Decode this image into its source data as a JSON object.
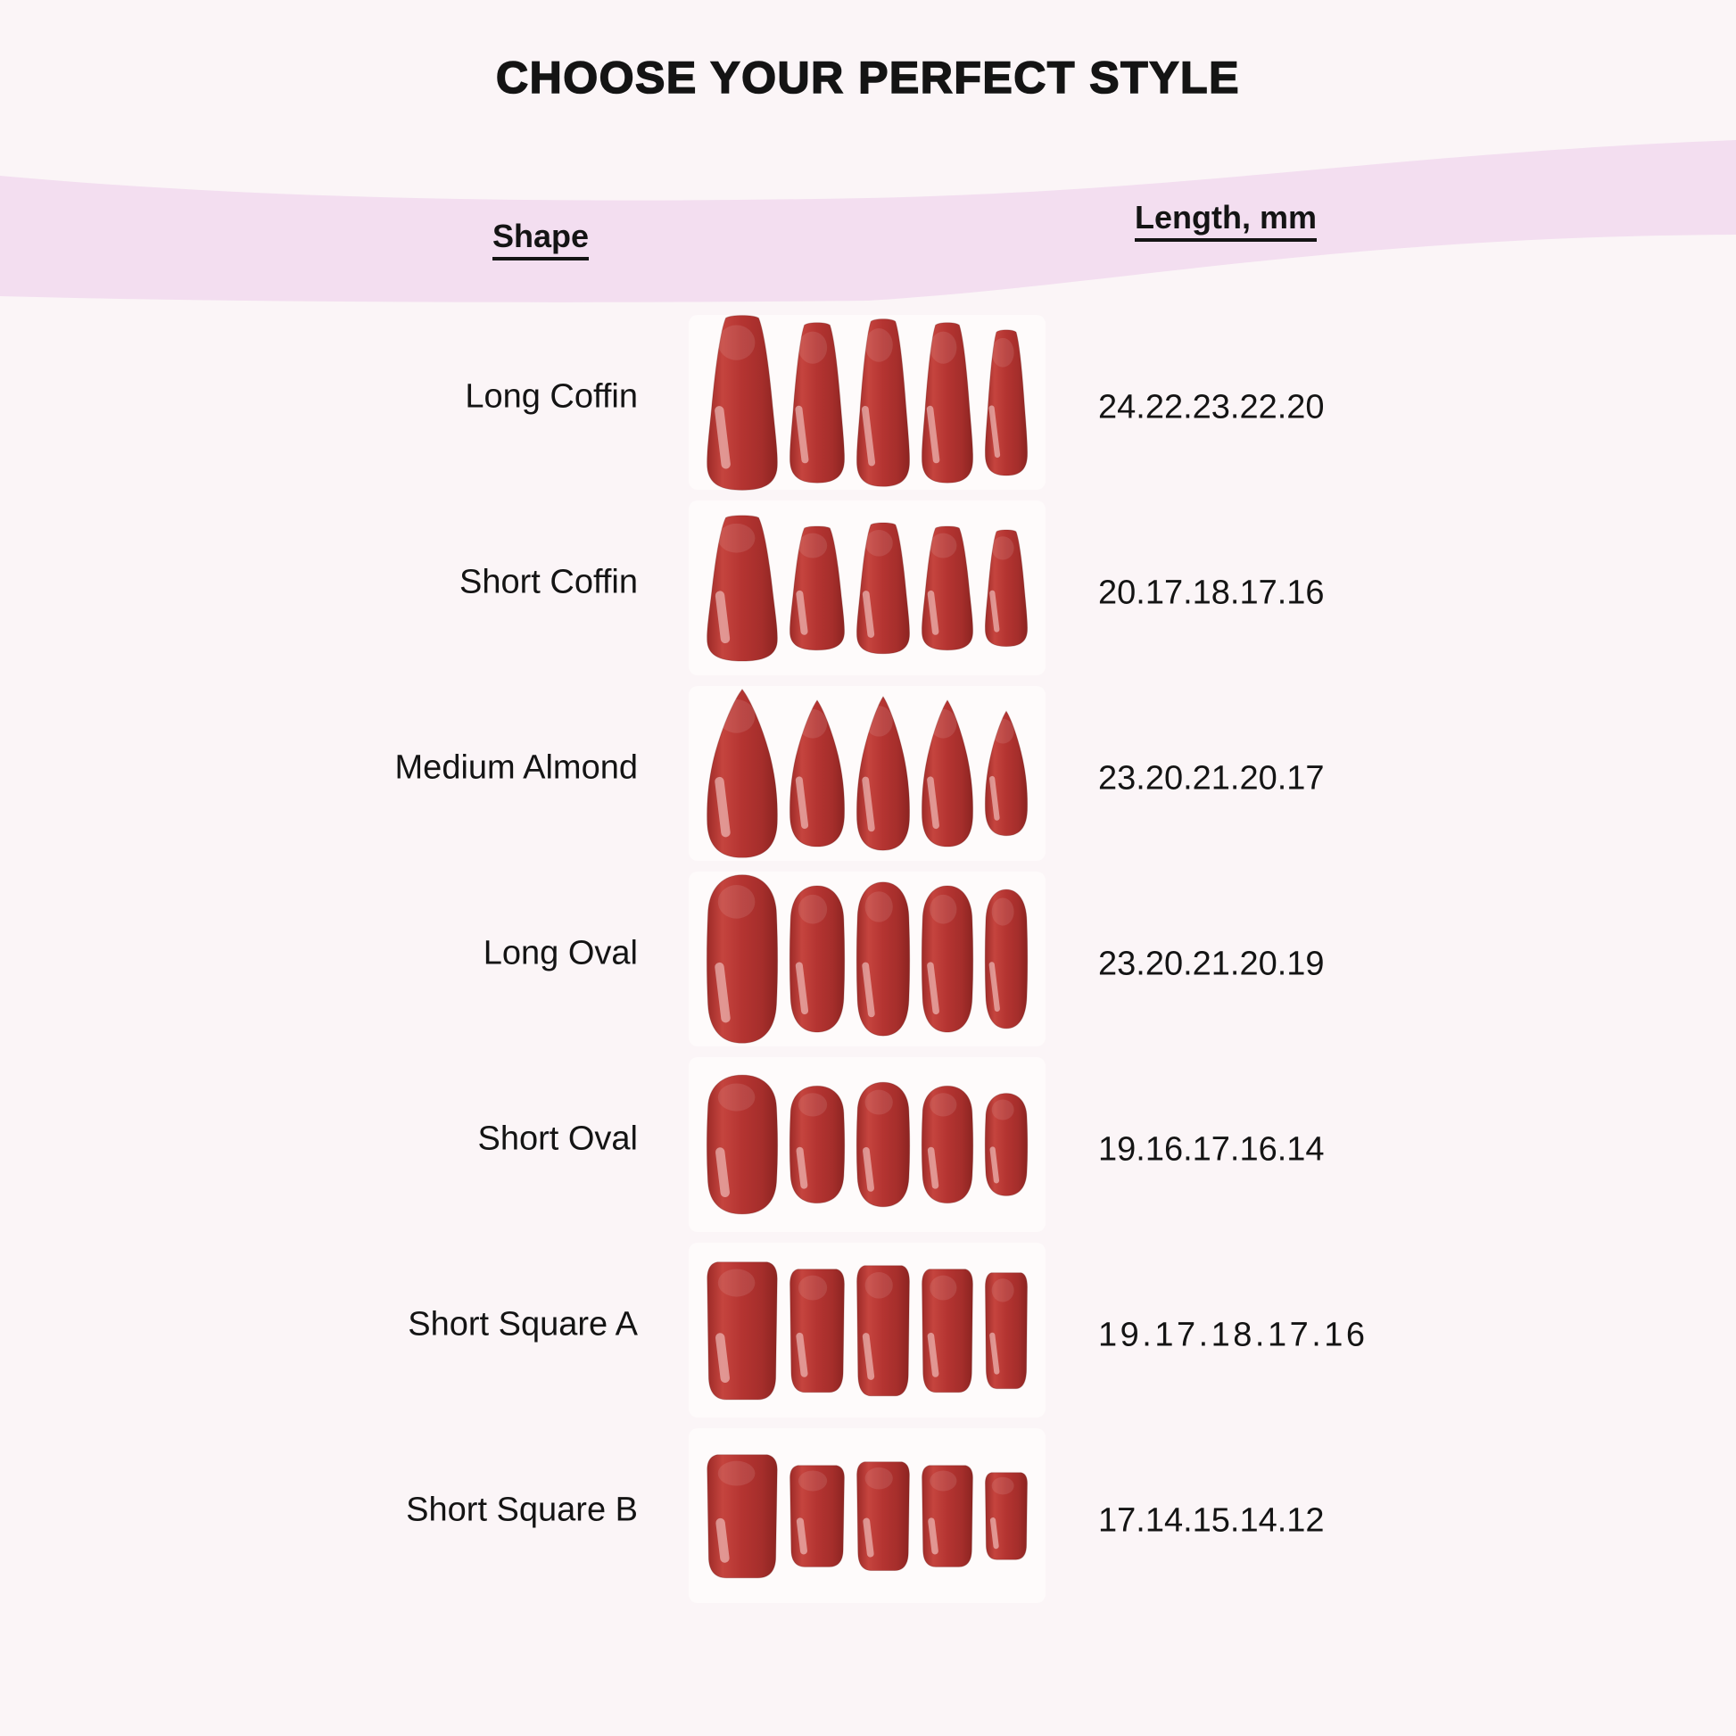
{
  "title": "CHOOSE YOUR PERFECT STYLE",
  "header": {
    "shape_col": "Shape",
    "length_col": "Length, mm"
  },
  "colors": {
    "background": "#fbf5f7",
    "band": "#f3def0",
    "text": "#141414",
    "photo_backdrop": "#fefbfb",
    "nail_deep": "#9d2b28",
    "nail_light": "#c5443e",
    "nail_base": "#b43431",
    "nail_mid": "#a52e2b",
    "nail_edge": "#8c2421",
    "nail_glare": "#ffe9e7"
  },
  "chart_data": {
    "type": "table",
    "columns": [
      "Shape",
      "Length, mm"
    ],
    "rows": [
      {
        "shape": "Long Coffin",
        "lengths_label": "24.22.23.22.20",
        "lengths_mm": [
          24,
          22,
          23,
          22,
          20
        ],
        "nail_shape": "coffin"
      },
      {
        "shape": "Short Coffin",
        "lengths_label": "20.17.18.17.16",
        "lengths_mm": [
          20,
          17,
          18,
          17,
          16
        ],
        "nail_shape": "coffin"
      },
      {
        "shape": "Medium Almond",
        "lengths_label": "23.20.21.20.17",
        "lengths_mm": [
          23,
          20,
          21,
          20,
          17
        ],
        "nail_shape": "almond"
      },
      {
        "shape": "Long Oval",
        "lengths_label": "23.20.21.20.19",
        "lengths_mm": [
          23,
          20,
          21,
          20,
          19
        ],
        "nail_shape": "oval"
      },
      {
        "shape": "Short Oval",
        "lengths_label": "19.16.17.16.14",
        "lengths_mm": [
          19,
          16,
          17,
          16,
          14
        ],
        "nail_shape": "oval"
      },
      {
        "shape": "Short Square A",
        "lengths_label": "19.17.18.17.16",
        "lengths_mm": [
          19,
          17,
          18,
          17,
          16
        ],
        "nail_shape": "square"
      },
      {
        "shape": "Short Square B",
        "lengths_label": "17.14.15.14.12",
        "lengths_mm": [
          17,
          14,
          15,
          14,
          12
        ],
        "nail_shape": "square"
      }
    ]
  }
}
